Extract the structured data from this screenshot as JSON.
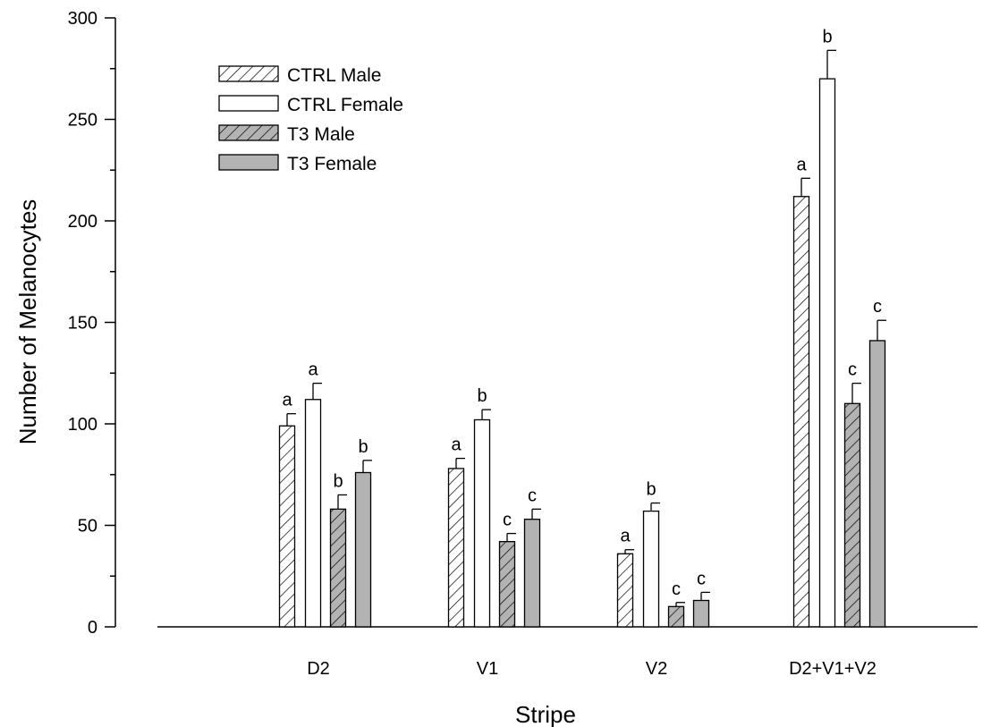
{
  "chart_data": {
    "type": "bar",
    "xlabel": "Stripe",
    "ylabel": "Number of Melanocytes",
    "ylim": [
      0,
      300
    ],
    "yticks": [
      0,
      50,
      100,
      150,
      200,
      250,
      300
    ],
    "grid": false,
    "legend_position": "top-left",
    "categories": [
      "D2",
      "V1",
      "V2",
      "D2+V1+V2"
    ],
    "series": [
      {
        "name": "CTRL Male",
        "fill": "#ffffff",
        "hatch": true,
        "values": [
          99,
          78,
          36,
          212
        ],
        "errors": [
          6,
          5,
          2,
          9
        ],
        "labels": [
          "a",
          "a",
          "a",
          "a"
        ]
      },
      {
        "name": "CTRL Female",
        "fill": "#ffffff",
        "hatch": false,
        "values": [
          112,
          102,
          57,
          270
        ],
        "errors": [
          8,
          5,
          4,
          14
        ],
        "labels": [
          "a",
          "b",
          "b",
          "b"
        ]
      },
      {
        "name": "T3 Male",
        "fill": "#b3b3b3",
        "hatch": true,
        "values": [
          58,
          42,
          10,
          110
        ],
        "errors": [
          7,
          4,
          2,
          10
        ],
        "labels": [
          "b",
          "c",
          "c",
          "c"
        ]
      },
      {
        "name": "T3 Female",
        "fill": "#b3b3b3",
        "hatch": false,
        "values": [
          76,
          53,
          13,
          141
        ],
        "errors": [
          6,
          5,
          4,
          10
        ],
        "labels": [
          "b",
          "c",
          "c",
          "c"
        ]
      }
    ]
  }
}
